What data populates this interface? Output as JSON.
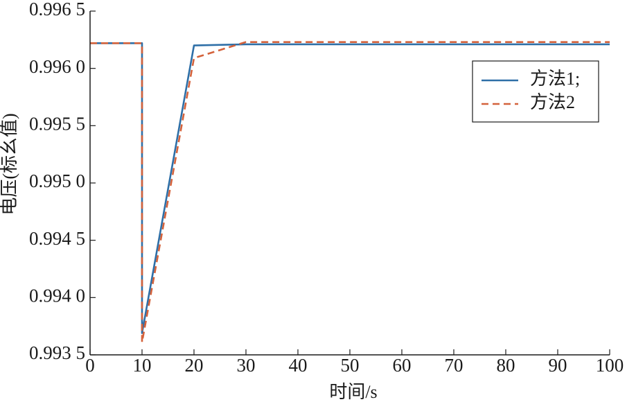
{
  "chart_data": {
    "type": "line",
    "xlabel": "时间/s",
    "ylabel": "电压(标幺值)",
    "xlim": [
      0,
      100
    ],
    "ylim": [
      0.9935,
      0.9965
    ],
    "xticks": [
      0,
      10,
      20,
      30,
      40,
      50,
      60,
      70,
      80,
      90,
      100
    ],
    "xtick_labels": [
      "0",
      "10",
      "20",
      "30",
      "40",
      "50",
      "60",
      "70",
      "80",
      "90",
      "100"
    ],
    "yticks": [
      0.9935,
      0.994,
      0.9945,
      0.995,
      0.9955,
      0.996,
      0.9965
    ],
    "ytick_labels": [
      "0.993 5",
      "0.994 0",
      "0.994 5",
      "0.995 0",
      "0.995 5",
      "0.996 0",
      "0.996 5"
    ],
    "grid": false,
    "legend": "top-right",
    "axis_color": "#1a1a1a",
    "series": [
      {
        "name": "方法1;",
        "color": "#2e6fa7",
        "dashed": false,
        "x": [
          0,
          10,
          10,
          20,
          30,
          100
        ],
        "y": [
          0.99622,
          0.99622,
          0.99369,
          0.9962,
          0.99621,
          0.99621
        ]
      },
      {
        "name": "方法2",
        "color": "#d4623b",
        "dashed": true,
        "x": [
          0,
          10,
          10,
          20,
          30,
          100
        ],
        "y": [
          0.99622,
          0.99622,
          0.99361,
          0.99609,
          0.99623,
          0.99623
        ]
      }
    ]
  }
}
